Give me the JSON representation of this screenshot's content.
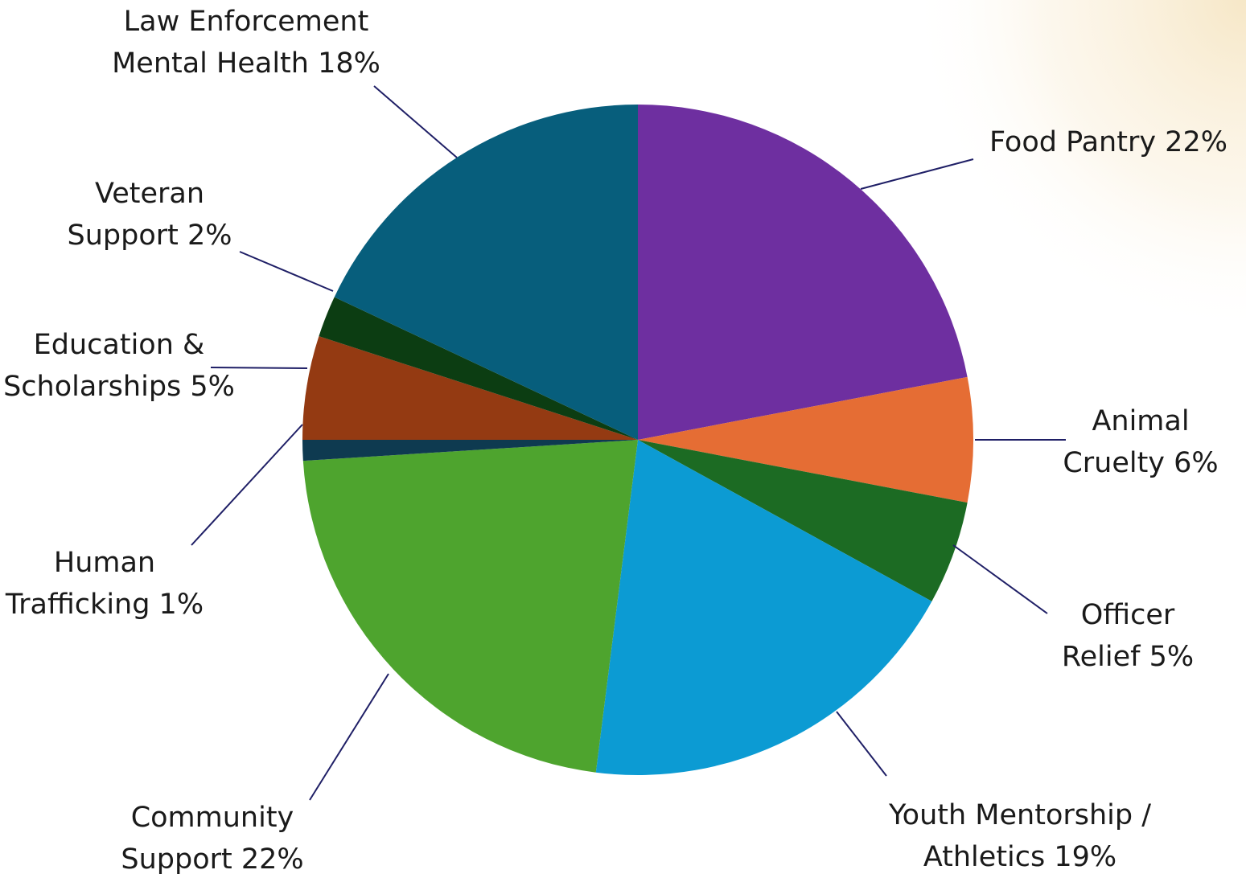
{
  "chart_data": {
    "type": "pie",
    "title": "",
    "slices": [
      {
        "label_lines": [
          "Food Pantry 22%"
        ],
        "value": 22,
        "color": "#6e2fa0"
      },
      {
        "label_lines": [
          "Animal",
          "Cruelty 6%"
        ],
        "value": 6,
        "color": "#e56d34"
      },
      {
        "label_lines": [
          "Officer",
          "Relief 5%"
        ],
        "value": 5,
        "color": "#1c6b23"
      },
      {
        "label_lines": [
          "Youth Mentorship /",
          "Athletics 19%"
        ],
        "value": 19,
        "color": "#0c9bd3"
      },
      {
        "label_lines": [
          "Community",
          "Support 22%"
        ],
        "value": 22,
        "color": "#4ea42e"
      },
      {
        "label_lines": [
          "Human",
          "Trafficking 1%"
        ],
        "value": 1,
        "color": "#0e3a50"
      },
      {
        "label_lines": [
          "Education &",
          "Scholarships 5%"
        ],
        "value": 5,
        "color": "#943a12"
      },
      {
        "label_lines": [
          "Veteran",
          "Support 2%"
        ],
        "value": 2,
        "color": "#0c3d12"
      },
      {
        "label_lines": [
          "Law Enforcement",
          "Mental Health 18%"
        ],
        "value": 18,
        "color": "#075e7c"
      }
    ]
  }
}
